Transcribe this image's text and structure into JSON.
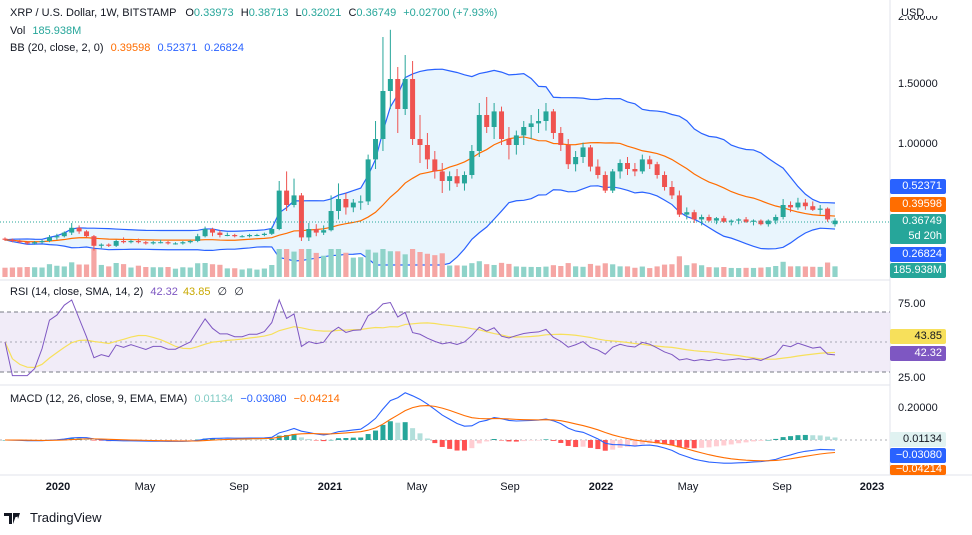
{
  "header": {
    "symbol": "XRP / U.S. Dollar, 1W, BITSTAMP",
    "o_label": "O",
    "o_value": "0.33973",
    "h_label": "H",
    "h_value": "0.38713",
    "l_label": "L",
    "l_value": "0.32021",
    "c_label": "C",
    "c_value": "0.36749",
    "change": "+0.02700 (+7.93%)",
    "vol_label": "Vol",
    "vol_value": "185.938M",
    "bb_label": "BB (20, close, 2, 0)",
    "bb_basis": "0.39598",
    "bb_upper": "0.52371",
    "bb_lower": "0.26824"
  },
  "rsi_header": {
    "label": "RSI (14, close, SMA, 14, 2)",
    "rsi": "42.32",
    "sma": "43.85",
    "n1": "∅",
    "n2": "∅"
  },
  "macd_header": {
    "label": "MACD (12, 26, close, 9, EMA, EMA)",
    "hist": "0.01134",
    "macd": "−0.03080",
    "signal": "−0.04214"
  },
  "axis": {
    "currency": "USD",
    "price_ticks": [
      "1.50000",
      "1.00000"
    ],
    "price_top_partial": "2.00000",
    "rsi_ticks": [
      "75.00",
      "25.00"
    ],
    "macd_ticks": [
      "0.20000"
    ],
    "price_boxes": {
      "bb_upper": "0.52371",
      "bb_basis": "0.39598",
      "last": "0.36749",
      "countdown": "5d 20h",
      "bb_lower": "0.26824",
      "volume": "185.938M"
    },
    "rsi_boxes": {
      "sma": "43.85",
      "rsi": "42.32"
    },
    "macd_boxes": {
      "hist": "0.01134",
      "macd": "−0.03080",
      "signal": "−0.04214"
    },
    "x_ticks": [
      "2020",
      "May",
      "Sep",
      "2021",
      "May",
      "Sep",
      "2022",
      "May",
      "Sep",
      "2023"
    ]
  },
  "brand": {
    "name": "TradingView"
  },
  "colors": {
    "up": "#26a69a",
    "down": "#ef5350",
    "bb_line": "#2962ff",
    "bb_basis": "#ff6d00",
    "bb_fill": "#e3f2fd",
    "rsi_line": "#7e57c2",
    "rsi_sma": "#f7e05b",
    "rsi_band": "#ede7f6",
    "macd_line": "#2962ff",
    "signal_line": "#ff6d00"
  },
  "chart_data": {
    "type": "candlestick",
    "title": "XRP / U.S. Dollar, 1W, BITSTAMP",
    "y_unit": "USD",
    "yticks": [
      1.0,
      1.5,
      2.0
    ],
    "x_range": [
      "2019-11",
      "2023-01"
    ],
    "candles_approx": [
      [
        0.22,
        0.23,
        0.2,
        0.21
      ],
      [
        0.21,
        0.22,
        0.19,
        0.2
      ],
      [
        0.2,
        0.21,
        0.18,
        0.19
      ],
      [
        0.19,
        0.2,
        0.17,
        0.18
      ],
      [
        0.18,
        0.2,
        0.17,
        0.19
      ],
      [
        0.19,
        0.21,
        0.18,
        0.2
      ],
      [
        0.2,
        0.25,
        0.19,
        0.23
      ],
      [
        0.23,
        0.26,
        0.21,
        0.24
      ],
      [
        0.24,
        0.28,
        0.23,
        0.27
      ],
      [
        0.27,
        0.35,
        0.25,
        0.31
      ],
      [
        0.31,
        0.33,
        0.26,
        0.28
      ],
      [
        0.28,
        0.29,
        0.23,
        0.24
      ],
      [
        0.24,
        0.25,
        0.12,
        0.16
      ],
      [
        0.16,
        0.18,
        0.14,
        0.17
      ],
      [
        0.17,
        0.18,
        0.15,
        0.16
      ],
      [
        0.16,
        0.21,
        0.15,
        0.2
      ],
      [
        0.2,
        0.23,
        0.18,
        0.19
      ],
      [
        0.19,
        0.21,
        0.18,
        0.2
      ],
      [
        0.2,
        0.22,
        0.18,
        0.19
      ],
      [
        0.19,
        0.2,
        0.17,
        0.18
      ],
      [
        0.18,
        0.2,
        0.17,
        0.19
      ],
      [
        0.19,
        0.21,
        0.18,
        0.19
      ],
      [
        0.19,
        0.2,
        0.17,
        0.18
      ],
      [
        0.18,
        0.19,
        0.17,
        0.18
      ],
      [
        0.18,
        0.2,
        0.17,
        0.19
      ],
      [
        0.19,
        0.21,
        0.18,
        0.2
      ],
      [
        0.2,
        0.26,
        0.19,
        0.24
      ],
      [
        0.24,
        0.32,
        0.23,
        0.3
      ],
      [
        0.3,
        0.31,
        0.24,
        0.27
      ],
      [
        0.27,
        0.29,
        0.23,
        0.25
      ],
      [
        0.25,
        0.27,
        0.24,
        0.25
      ],
      [
        0.25,
        0.26,
        0.23,
        0.24
      ],
      [
        0.24,
        0.25,
        0.23,
        0.24
      ],
      [
        0.24,
        0.26,
        0.23,
        0.25
      ],
      [
        0.25,
        0.26,
        0.24,
        0.25
      ],
      [
        0.25,
        0.27,
        0.24,
        0.26
      ],
      [
        0.26,
        0.32,
        0.25,
        0.3
      ],
      [
        0.3,
        0.7,
        0.29,
        0.62
      ],
      [
        0.62,
        0.78,
        0.45,
        0.5
      ],
      [
        0.5,
        0.72,
        0.48,
        0.58
      ],
      [
        0.58,
        0.6,
        0.2,
        0.23
      ],
      [
        0.23,
        0.35,
        0.2,
        0.3
      ],
      [
        0.3,
        0.34,
        0.24,
        0.27
      ],
      [
        0.27,
        0.33,
        0.25,
        0.29
      ],
      [
        0.29,
        0.58,
        0.28,
        0.45
      ],
      [
        0.45,
        0.68,
        0.38,
        0.55
      ],
      [
        0.55,
        0.6,
        0.42,
        0.48
      ],
      [
        0.48,
        0.55,
        0.44,
        0.52
      ],
      [
        0.52,
        0.58,
        0.46,
        0.53
      ],
      [
        0.53,
        0.92,
        0.5,
        0.88
      ],
      [
        0.88,
        1.2,
        0.8,
        1.05
      ],
      [
        1.05,
        1.9,
        0.95,
        1.45
      ],
      [
        1.45,
        1.96,
        1.3,
        1.55
      ],
      [
        1.55,
        1.65,
        1.1,
        1.3
      ],
      [
        1.3,
        1.75,
        1.25,
        1.55
      ],
      [
        1.55,
        1.7,
        1.0,
        1.05
      ],
      [
        1.05,
        1.25,
        0.85,
        1.0
      ],
      [
        1.0,
        1.1,
        0.8,
        0.88
      ],
      [
        0.88,
        0.95,
        0.72,
        0.78
      ],
      [
        0.78,
        0.85,
        0.6,
        0.7
      ],
      [
        0.7,
        0.78,
        0.62,
        0.74
      ],
      [
        0.74,
        0.8,
        0.65,
        0.68
      ],
      [
        0.68,
        0.78,
        0.62,
        0.75
      ],
      [
        0.75,
        1.0,
        0.72,
        0.95
      ],
      [
        0.95,
        1.35,
        0.9,
        1.25
      ],
      [
        1.25,
        1.4,
        1.1,
        1.15
      ],
      [
        1.15,
        1.35,
        1.05,
        1.28
      ],
      [
        1.28,
        1.32,
        1.0,
        1.05
      ],
      [
        1.05,
        1.15,
        0.88,
        1.0
      ],
      [
        1.0,
        1.12,
        0.92,
        1.08
      ],
      [
        1.08,
        1.2,
        1.0,
        1.15
      ],
      [
        1.15,
        1.25,
        1.05,
        1.18
      ],
      [
        1.18,
        1.3,
        1.1,
        1.2
      ],
      [
        1.2,
        1.35,
        1.12,
        1.28
      ],
      [
        1.28,
        1.3,
        1.05,
        1.1
      ],
      [
        1.1,
        1.15,
        0.95,
        1.0
      ],
      [
        1.0,
        1.05,
        0.8,
        0.84
      ],
      [
        0.84,
        0.95,
        0.78,
        0.9
      ],
      [
        0.9,
        1.02,
        0.85,
        0.98
      ],
      [
        0.98,
        1.0,
        0.78,
        0.82
      ],
      [
        0.82,
        0.88,
        0.72,
        0.75
      ],
      [
        0.75,
        0.78,
        0.6,
        0.62
      ],
      [
        0.62,
        0.8,
        0.6,
        0.78
      ],
      [
        0.78,
        0.88,
        0.72,
        0.85
      ],
      [
        0.85,
        0.9,
        0.75,
        0.8
      ],
      [
        0.8,
        0.85,
        0.74,
        0.78
      ],
      [
        0.78,
        0.92,
        0.76,
        0.88
      ],
      [
        0.88,
        0.91,
        0.8,
        0.84
      ],
      [
        0.84,
        0.86,
        0.72,
        0.75
      ],
      [
        0.75,
        0.78,
        0.62,
        0.65
      ],
      [
        0.65,
        0.7,
        0.55,
        0.58
      ],
      [
        0.58,
        0.62,
        0.4,
        0.42
      ],
      [
        0.42,
        0.48,
        0.38,
        0.44
      ],
      [
        0.44,
        0.46,
        0.35,
        0.38
      ],
      [
        0.38,
        0.42,
        0.33,
        0.4
      ],
      [
        0.4,
        0.42,
        0.36,
        0.37
      ],
      [
        0.37,
        0.4,
        0.34,
        0.39
      ],
      [
        0.39,
        0.41,
        0.35,
        0.36
      ],
      [
        0.36,
        0.38,
        0.33,
        0.37
      ],
      [
        0.37,
        0.39,
        0.34,
        0.38
      ],
      [
        0.38,
        0.4,
        0.35,
        0.36
      ],
      [
        0.36,
        0.38,
        0.33,
        0.37
      ],
      [
        0.37,
        0.38,
        0.33,
        0.34
      ],
      [
        0.34,
        0.38,
        0.32,
        0.37
      ],
      [
        0.37,
        0.42,
        0.34,
        0.4
      ],
      [
        0.4,
        0.55,
        0.38,
        0.5
      ],
      [
        0.5,
        0.53,
        0.44,
        0.48
      ],
      [
        0.48,
        0.56,
        0.46,
        0.52
      ],
      [
        0.52,
        0.55,
        0.46,
        0.49
      ],
      [
        0.49,
        0.53,
        0.45,
        0.46
      ],
      [
        0.46,
        0.5,
        0.42,
        0.47
      ],
      [
        0.47,
        0.48,
        0.36,
        0.38
      ],
      [
        0.34,
        0.39,
        0.32,
        0.37
      ]
    ],
    "last": {
      "open": 0.33973,
      "high": 0.38713,
      "low": 0.32021,
      "close": 0.36749,
      "change": 0.027,
      "change_pct": 7.93,
      "volume": "185.938M"
    },
    "bollinger": {
      "length": 20,
      "mult": 2,
      "basis": 0.39598,
      "upper": 0.52371,
      "lower": 0.26824
    },
    "rsi": {
      "length": 14,
      "value": 42.32,
      "sma": 43.85,
      "band": [
        25,
        75
      ],
      "yticks": [
        25,
        75
      ]
    },
    "macd": {
      "fast": 12,
      "slow": 26,
      "signal": 9,
      "histogram": 0.01134,
      "macd": -0.0308,
      "signal_value": -0.04214,
      "yticks": [
        0.2
      ]
    }
  }
}
